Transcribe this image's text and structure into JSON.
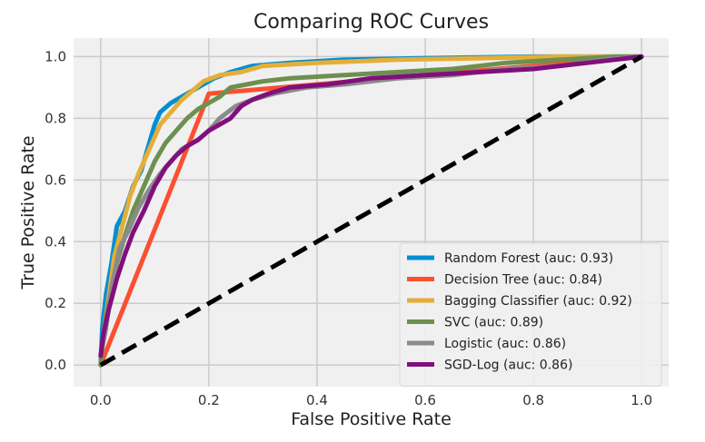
{
  "chart_data": {
    "type": "line",
    "title": "Comparing ROC Curves",
    "xlabel": "False Positive Rate",
    "ylabel": "True Positive Rate",
    "xlim": [
      -0.05,
      1.05
    ],
    "ylim": [
      -0.07,
      1.06
    ],
    "xticks": [
      "0.0",
      "0.2",
      "0.4",
      "0.6",
      "0.8",
      "1.0"
    ],
    "yticks": [
      "0.0",
      "0.2",
      "0.4",
      "0.6",
      "0.8",
      "1.0"
    ],
    "grid": true,
    "legend_position": "lower-right",
    "series": [
      {
        "name": "Random Forest (auc: 0.93)",
        "color": "#008fd5",
        "points": [
          [
            0,
            0
          ],
          [
            0.003,
            0.12
          ],
          [
            0.01,
            0.23
          ],
          [
            0.02,
            0.33
          ],
          [
            0.03,
            0.45
          ],
          [
            0.045,
            0.5
          ],
          [
            0.06,
            0.58
          ],
          [
            0.075,
            0.63
          ],
          [
            0.09,
            0.72
          ],
          [
            0.1,
            0.78
          ],
          [
            0.11,
            0.82
          ],
          [
            0.13,
            0.85
          ],
          [
            0.15,
            0.87
          ],
          [
            0.17,
            0.89
          ],
          [
            0.19,
            0.91
          ],
          [
            0.21,
            0.93
          ],
          [
            0.24,
            0.95
          ],
          [
            0.28,
            0.97
          ],
          [
            0.35,
            0.98
          ],
          [
            0.45,
            0.99
          ],
          [
            0.6,
            0.995
          ],
          [
            0.8,
            1.0
          ],
          [
            1.0,
            1.0
          ]
        ]
      },
      {
        "name": "Decision Tree (auc: 0.84)",
        "color": "#fc4f30",
        "points": [
          [
            0,
            0
          ],
          [
            0.2,
            0.88
          ],
          [
            1.0,
            1.0
          ]
        ]
      },
      {
        "name": "Bagging Classifier (auc: 0.92)",
        "color": "#e5ae38",
        "points": [
          [
            0,
            0
          ],
          [
            0.005,
            0.1
          ],
          [
            0.015,
            0.22
          ],
          [
            0.025,
            0.35
          ],
          [
            0.04,
            0.45
          ],
          [
            0.055,
            0.55
          ],
          [
            0.07,
            0.62
          ],
          [
            0.09,
            0.7
          ],
          [
            0.11,
            0.78
          ],
          [
            0.13,
            0.82
          ],
          [
            0.15,
            0.86
          ],
          [
            0.17,
            0.89
          ],
          [
            0.19,
            0.92
          ],
          [
            0.22,
            0.94
          ],
          [
            0.26,
            0.95
          ],
          [
            0.3,
            0.97
          ],
          [
            0.4,
            0.98
          ],
          [
            0.55,
            0.99
          ],
          [
            0.7,
            0.995
          ],
          [
            0.85,
            1.0
          ],
          [
            1.0,
            1.0
          ]
        ]
      },
      {
        "name": "SVC (auc: 0.89)",
        "color": "#6d904f",
        "points": [
          [
            0,
            0
          ],
          [
            0.005,
            0.1
          ],
          [
            0.015,
            0.2
          ],
          [
            0.03,
            0.33
          ],
          [
            0.045,
            0.42
          ],
          [
            0.06,
            0.5
          ],
          [
            0.08,
            0.58
          ],
          [
            0.1,
            0.66
          ],
          [
            0.12,
            0.72
          ],
          [
            0.14,
            0.76
          ],
          [
            0.16,
            0.8
          ],
          [
            0.18,
            0.83
          ],
          [
            0.2,
            0.85
          ],
          [
            0.22,
            0.87
          ],
          [
            0.24,
            0.9
          ],
          [
            0.27,
            0.91
          ],
          [
            0.3,
            0.92
          ],
          [
            0.35,
            0.93
          ],
          [
            0.45,
            0.94
          ],
          [
            0.55,
            0.95
          ],
          [
            0.65,
            0.96
          ],
          [
            0.75,
            0.98
          ],
          [
            0.85,
            0.99
          ],
          [
            0.95,
            1.0
          ],
          [
            1.0,
            1.0
          ]
        ]
      },
      {
        "name": "Logistic (auc: 0.86)",
        "color": "#8b8b8b",
        "points": [
          [
            0,
            0.03
          ],
          [
            0.01,
            0.12
          ],
          [
            0.02,
            0.25
          ],
          [
            0.035,
            0.38
          ],
          [
            0.05,
            0.43
          ],
          [
            0.07,
            0.51
          ],
          [
            0.09,
            0.57
          ],
          [
            0.11,
            0.62
          ],
          [
            0.13,
            0.66
          ],
          [
            0.15,
            0.7
          ],
          [
            0.18,
            0.73
          ],
          [
            0.2,
            0.76
          ],
          [
            0.22,
            0.8
          ],
          [
            0.25,
            0.84
          ],
          [
            0.28,
            0.86
          ],
          [
            0.32,
            0.88
          ],
          [
            0.38,
            0.9
          ],
          [
            0.45,
            0.91
          ],
          [
            0.55,
            0.93
          ],
          [
            0.65,
            0.94
          ],
          [
            0.75,
            0.96
          ],
          [
            0.85,
            0.97
          ],
          [
            0.93,
            0.99
          ],
          [
            1.0,
            1.0
          ]
        ]
      },
      {
        "name": "SGD-Log (auc: 0.86)",
        "color": "#810f7c",
        "points": [
          [
            0,
            0.03
          ],
          [
            0.005,
            0.1
          ],
          [
            0.015,
            0.18
          ],
          [
            0.03,
            0.28
          ],
          [
            0.045,
            0.36
          ],
          [
            0.06,
            0.43
          ],
          [
            0.08,
            0.5
          ],
          [
            0.1,
            0.58
          ],
          [
            0.12,
            0.64
          ],
          [
            0.14,
            0.68
          ],
          [
            0.16,
            0.71
          ],
          [
            0.18,
            0.73
          ],
          [
            0.2,
            0.76
          ],
          [
            0.22,
            0.78
          ],
          [
            0.24,
            0.8
          ],
          [
            0.26,
            0.84
          ],
          [
            0.28,
            0.86
          ],
          [
            0.31,
            0.88
          ],
          [
            0.35,
            0.9
          ],
          [
            0.42,
            0.91
          ],
          [
            0.5,
            0.93
          ],
          [
            0.6,
            0.94
          ],
          [
            0.7,
            0.95
          ],
          [
            0.8,
            0.96
          ],
          [
            0.9,
            0.98
          ],
          [
            0.95,
            0.99
          ],
          [
            1.0,
            1.0
          ]
        ]
      }
    ],
    "reference_line": {
      "color": "#000000",
      "points": [
        [
          0,
          0
        ],
        [
          1.0,
          1.0
        ]
      ]
    }
  }
}
